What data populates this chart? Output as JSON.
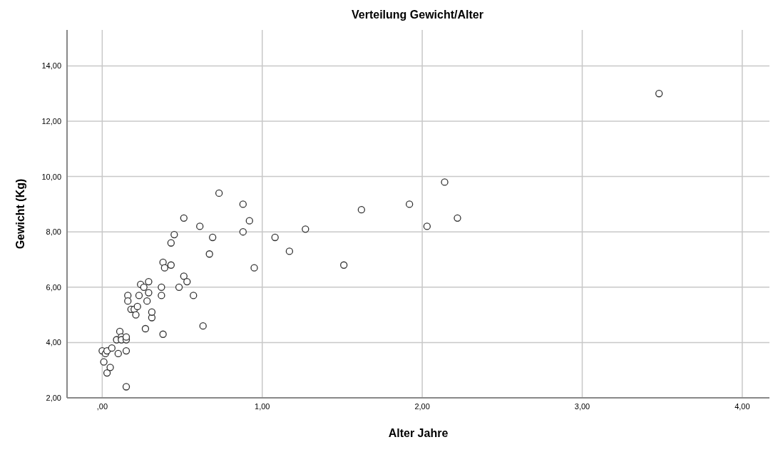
{
  "chart_data": {
    "type": "scatter",
    "title": "Verteilung Gewicht/Alter",
    "xlabel": "Alter Jahre",
    "ylabel": "Gewicht (Kg)",
    "xlim": [
      -0.22,
      4.17
    ],
    "ylim": [
      2,
      15.3
    ],
    "xticks": [
      {
        "value": 0,
        "label": ",00"
      },
      {
        "value": 1,
        "label": "1,00"
      },
      {
        "value": 2,
        "label": "2,00"
      },
      {
        "value": 3,
        "label": "3,00"
      },
      {
        "value": 4,
        "label": "4,00"
      }
    ],
    "yticks": [
      {
        "value": 2,
        "label": "2,00"
      },
      {
        "value": 4,
        "label": "4,00"
      },
      {
        "value": 6,
        "label": "6,00"
      },
      {
        "value": 8,
        "label": "8,00"
      },
      {
        "value": 10,
        "label": "10,00"
      },
      {
        "value": 12,
        "label": "12,00"
      },
      {
        "value": 14,
        "label": "14,00"
      }
    ],
    "grid": true,
    "marker": "circle",
    "series": [
      {
        "color": "#333333",
        "x": [
          0.0,
          0.02,
          0.03,
          0.01,
          0.03,
          0.05,
          0.06,
          0.09,
          0.1,
          0.11,
          0.12,
          0.12,
          0.15,
          0.15,
          0.15,
          0.15,
          0.16,
          0.16,
          0.18,
          0.2,
          0.21,
          0.22,
          0.23,
          0.24,
          0.26,
          0.27,
          0.29,
          0.28,
          0.29,
          0.31,
          0.31,
          0.37,
          0.37,
          0.38,
          0.38,
          0.39,
          0.43,
          0.43,
          0.45,
          0.48,
          0.51,
          0.51,
          0.53,
          0.57,
          0.61,
          0.63,
          0.67,
          0.69,
          0.73,
          0.88,
          0.88,
          0.92,
          0.95,
          1.08,
          1.17,
          1.27,
          1.51,
          1.62,
          1.92,
          2.03,
          2.14,
          2.22,
          3.48
        ],
        "values": [
          3.7,
          3.6,
          3.7,
          3.3,
          2.9,
          3.1,
          3.8,
          4.1,
          3.6,
          4.4,
          4.2,
          4.1,
          4.1,
          4.2,
          3.7,
          2.4,
          5.7,
          5.5,
          5.2,
          5.2,
          5.0,
          5.3,
          5.7,
          6.1,
          6.0,
          4.5,
          6.2,
          5.5,
          5.8,
          4.9,
          5.1,
          6.0,
          5.7,
          6.9,
          4.3,
          6.7,
          7.6,
          6.8,
          7.9,
          6.0,
          8.5,
          6.4,
          6.2,
          5.7,
          8.2,
          4.6,
          7.2,
          7.8,
          9.4,
          9.0,
          8.0,
          8.4,
          6.7,
          7.8,
          7.3,
          8.1,
          6.8,
          8.8,
          9.0,
          8.2,
          9.8,
          8.5,
          13.0
        ]
      }
    ]
  }
}
